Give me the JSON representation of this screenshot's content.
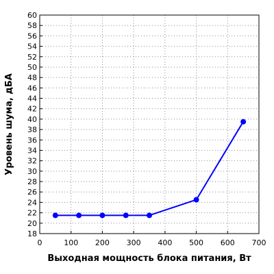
{
  "chart_data": {
    "type": "line",
    "title": "",
    "xlabel": "Выходная мощность блока питания, Вт",
    "ylabel": "Уровень шума, дБА",
    "xlim": [
      0,
      700
    ],
    "ylim": [
      18,
      60
    ],
    "x_ticks": [
      0,
      100,
      200,
      300,
      400,
      500,
      600,
      700
    ],
    "y_ticks": [
      18,
      20,
      22,
      24,
      26,
      28,
      30,
      32,
      34,
      36,
      38,
      40,
      42,
      44,
      46,
      48,
      50,
      52,
      54,
      56,
      58,
      60
    ],
    "grid": true,
    "legend": "none",
    "series": [
      {
        "color": "#0000ff",
        "x": [
          50,
          125,
          200,
          275,
          350,
          500,
          650
        ],
        "y": [
          21.5,
          21.5,
          21.5,
          21.5,
          21.5,
          24.5,
          39.5
        ]
      }
    ]
  }
}
